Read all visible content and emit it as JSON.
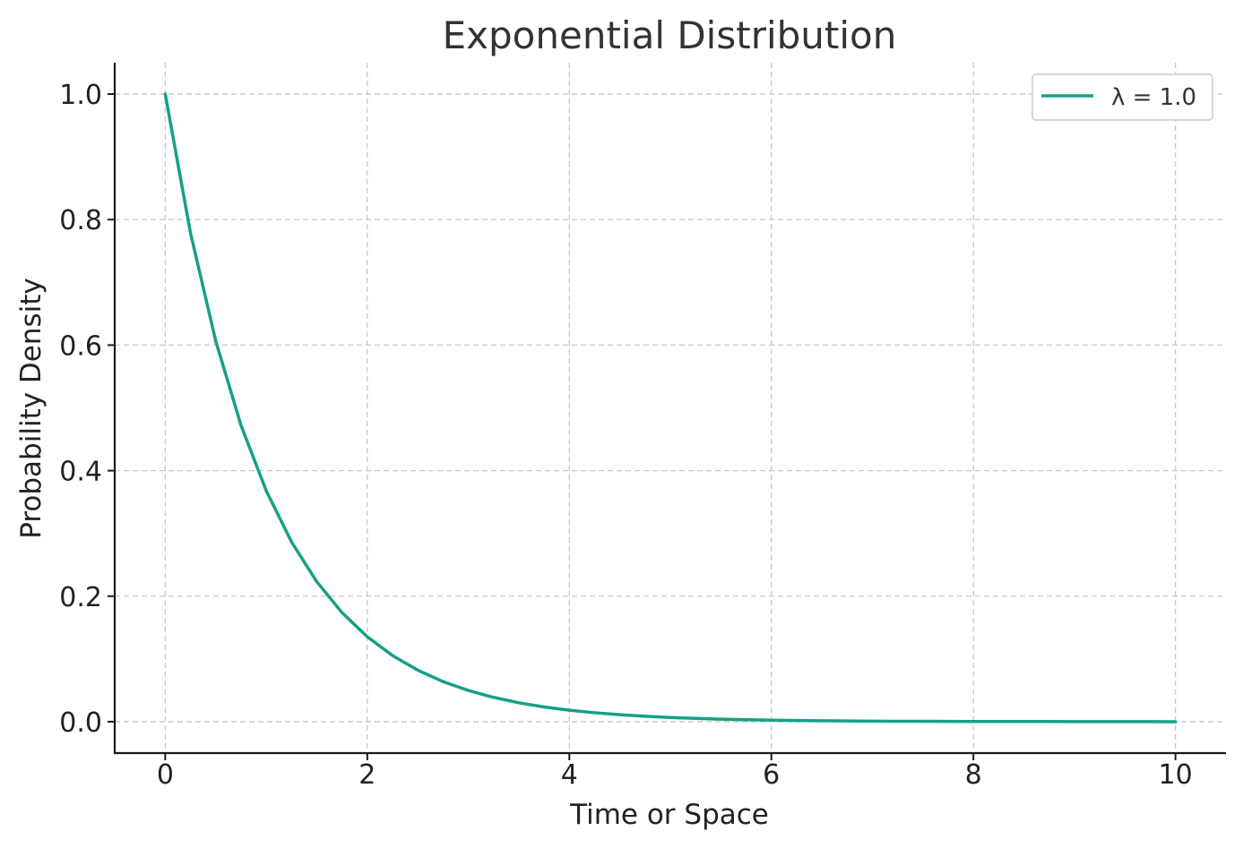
{
  "chart_data": {
    "type": "line",
    "title": "Exponential Distribution",
    "xlabel": "Time or Space",
    "ylabel": "Probability Density",
    "xlim": [
      -0.5,
      10.5
    ],
    "ylim": [
      -0.05,
      1.05
    ],
    "xticks": [
      0,
      2,
      4,
      6,
      8,
      10
    ],
    "xtick_labels": [
      "0",
      "2",
      "4",
      "6",
      "8",
      "10"
    ],
    "yticks": [
      0.0,
      0.2,
      0.4,
      0.6,
      0.8,
      1.0
    ],
    "ytick_labels": [
      "0.0",
      "0.2",
      "0.4",
      "0.6",
      "0.8",
      "1.0"
    ],
    "grid": true,
    "legend_position": "top-right",
    "series": [
      {
        "name": "λ = 1.0",
        "color": "#16a085",
        "x": [
          0,
          0.25,
          0.5,
          0.75,
          1,
          1.25,
          1.5,
          1.75,
          2,
          2.25,
          2.5,
          2.75,
          3,
          3.25,
          3.5,
          3.75,
          4,
          4.25,
          4.5,
          4.75,
          5,
          5.25,
          5.5,
          5.75,
          6,
          6.25,
          6.5,
          6.75,
          7,
          7.25,
          7.5,
          7.75,
          8,
          8.25,
          8.5,
          8.75,
          9,
          9.25,
          9.5,
          9.75,
          10
        ],
        "y": [
          1.0,
          0.7788,
          0.6065,
          0.4724,
          0.3679,
          0.2865,
          0.2231,
          0.1738,
          0.1353,
          0.1054,
          0.0821,
          0.0639,
          0.0498,
          0.0388,
          0.0302,
          0.0235,
          0.0183,
          0.0143,
          0.0111,
          0.0087,
          0.0067,
          0.0052,
          0.0041,
          0.0032,
          0.0025,
          0.0019,
          0.0015,
          0.0012,
          0.0009,
          0.0007,
          0.0006,
          0.0004,
          0.0003,
          0.0003,
          0.0002,
          0.0002,
          0.0001,
          0.0001,
          0.0001,
          0.0001,
          0.0
        ]
      }
    ]
  }
}
